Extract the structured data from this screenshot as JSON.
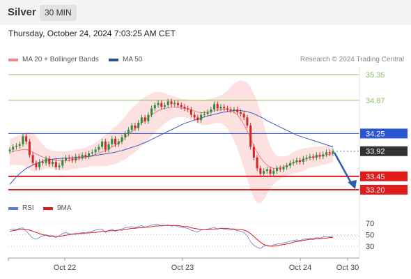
{
  "header": {
    "title": "Silver",
    "timeframe": "30 MIN"
  },
  "timestamp": "Thursday, October 24, 2024 7:03:25 AM CET",
  "legend": {
    "ma": "MA 20 + Bollinger Bands",
    "ma50": "MA 50",
    "credit": "Research © 2024 Trading Central",
    "rsi": "RSI",
    "rsi_ma": "9MA"
  },
  "colors": {
    "candle_up": "#2e8b3e",
    "candle_down": "#d42525",
    "bb_fill": "#fde0e0",
    "ma20": "#f07a7a",
    "ma50": "#3a5ec0",
    "resistance": "#90c060",
    "support": "#e01b1b",
    "pivot": "#2a55d0",
    "last": "#333333"
  },
  "chart_data": [
    {
      "type": "candlestick",
      "x_tick_labels": [
        "Oct 22",
        "Oct 23",
        "Oct 24",
        "Oct 30"
      ],
      "ylim": [
        33.1,
        35.45
      ],
      "levels": [
        {
          "value": 35.35,
          "label": "35.35",
          "kind": "resistance"
        },
        {
          "value": 34.87,
          "label": "34.87",
          "kind": "resistance"
        },
        {
          "value": 34.25,
          "label": "34.25",
          "kind": "pivot"
        },
        {
          "value": 33.92,
          "label": "33.92",
          "kind": "last"
        },
        {
          "value": 33.45,
          "label": "33.45",
          "kind": "support"
        },
        {
          "value": 33.2,
          "label": "33.20",
          "kind": "support"
        }
      ],
      "arrow": {
        "from": 33.92,
        "to": 33.2
      },
      "close": [
        33.95,
        34.0,
        34.02,
        34.05,
        34.2,
        34.1,
        33.85,
        33.7,
        33.62,
        33.72,
        33.7,
        33.78,
        33.68,
        33.72,
        33.62,
        33.65,
        33.75,
        33.8,
        33.78,
        33.75,
        33.82,
        33.8,
        33.85,
        33.82,
        33.88,
        33.9,
        33.95,
        34.0,
        34.1,
        33.95,
        34.05,
        34.15,
        34.05,
        34.1,
        34.18,
        34.25,
        34.32,
        34.4,
        34.35,
        34.45,
        34.55,
        34.48,
        34.6,
        34.72,
        34.78,
        34.82,
        34.75,
        34.78,
        34.85,
        34.8,
        34.82,
        34.78,
        34.75,
        34.72,
        34.7,
        34.6,
        34.55,
        34.5,
        34.6,
        34.62,
        34.65,
        34.7,
        34.8,
        34.72,
        34.75,
        34.72,
        34.7,
        34.68,
        34.7,
        34.65,
        34.62,
        34.55,
        34.4,
        34.0,
        33.8,
        33.6,
        33.5,
        33.55,
        33.58,
        33.5,
        33.55,
        33.6,
        33.58,
        33.62,
        33.65,
        33.7,
        33.72,
        33.75,
        33.72,
        33.78,
        33.8,
        33.82,
        33.8,
        33.85,
        33.82,
        33.86,
        33.9,
        33.88,
        33.92
      ],
      "ma20": [
        33.9,
        33.92,
        33.93,
        33.94,
        33.95,
        33.95,
        33.93,
        33.9,
        33.87,
        33.84,
        33.81,
        33.79,
        33.77,
        33.76,
        33.75,
        33.74,
        33.74,
        33.74,
        33.75,
        33.76,
        33.77,
        33.78,
        33.79,
        33.8,
        33.82,
        33.84,
        33.86,
        33.88,
        33.91,
        33.93,
        33.96,
        34.0,
        34.03,
        34.07,
        34.12,
        34.17,
        34.23,
        34.29,
        34.34,
        34.4,
        34.46,
        34.5,
        34.55,
        34.6,
        34.64,
        34.68,
        34.7,
        34.72,
        34.73,
        34.74,
        34.74,
        34.74,
        34.73,
        34.72,
        34.71,
        34.69,
        34.67,
        34.65,
        34.64,
        34.64,
        34.65,
        34.66,
        34.68,
        34.69,
        34.7,
        34.7,
        34.7,
        34.68,
        34.65,
        34.6,
        34.52,
        34.42,
        34.3,
        34.16,
        34.02,
        33.9,
        33.8,
        33.72,
        33.66,
        33.62,
        33.6,
        33.6,
        33.61,
        33.63,
        33.65,
        33.67,
        33.7,
        33.72,
        33.74,
        33.76,
        33.78,
        33.8,
        33.81,
        33.82,
        33.83,
        33.84,
        33.85,
        33.86,
        33.87
      ],
      "bb_upper": [
        34.15,
        34.17,
        34.2,
        34.22,
        34.25,
        34.28,
        34.28,
        34.25,
        34.2,
        34.12,
        34.05,
        33.98,
        33.95,
        33.93,
        33.92,
        33.92,
        33.92,
        33.92,
        33.93,
        33.94,
        33.95,
        33.96,
        33.97,
        33.99,
        34.01,
        34.04,
        34.08,
        34.12,
        34.18,
        34.22,
        34.27,
        34.33,
        34.38,
        34.43,
        34.5,
        34.57,
        34.65,
        34.72,
        34.78,
        34.84,
        34.9,
        34.94,
        34.97,
        35.0,
        35.02,
        35.03,
        35.02,
        35.0,
        34.98,
        34.96,
        34.94,
        34.92,
        34.9,
        34.89,
        34.88,
        34.87,
        34.86,
        34.86,
        34.87,
        34.88,
        34.89,
        34.9,
        34.92,
        34.94,
        34.96,
        35.0,
        35.05,
        35.12,
        35.18,
        35.22,
        35.24,
        35.23,
        35.2,
        35.12,
        35.0,
        34.85,
        34.65,
        34.42,
        34.2,
        34.02,
        33.9,
        33.84,
        33.82,
        33.82,
        33.83,
        33.86,
        33.9,
        33.93,
        33.95,
        33.97,
        33.98,
        33.99,
        34.0,
        34.0,
        34.01,
        34.01,
        34.02,
        34.02,
        34.02
      ],
      "bb_lower": [
        33.65,
        33.67,
        33.66,
        33.66,
        33.65,
        33.62,
        33.58,
        33.55,
        33.54,
        33.56,
        33.57,
        33.6,
        33.59,
        33.59,
        33.58,
        33.56,
        33.56,
        33.56,
        33.57,
        33.58,
        33.59,
        33.6,
        33.61,
        33.61,
        33.63,
        33.64,
        33.64,
        33.64,
        33.64,
        33.64,
        33.65,
        33.67,
        33.68,
        33.71,
        33.74,
        33.77,
        33.81,
        33.86,
        33.9,
        33.96,
        34.02,
        34.06,
        34.13,
        34.2,
        34.26,
        34.33,
        34.38,
        34.44,
        34.48,
        34.52,
        34.54,
        34.56,
        34.56,
        34.55,
        34.54,
        34.51,
        34.48,
        34.44,
        34.41,
        34.4,
        34.41,
        34.42,
        34.44,
        34.44,
        34.44,
        34.4,
        34.35,
        34.24,
        34.12,
        33.98,
        33.8,
        33.61,
        33.4,
        33.2,
        33.04,
        32.95,
        32.95,
        33.02,
        33.12,
        33.22,
        33.3,
        33.36,
        33.4,
        33.44,
        33.47,
        33.48,
        33.5,
        33.51,
        33.53,
        33.55,
        33.58,
        33.61,
        33.62,
        33.64,
        33.65,
        33.67,
        33.68,
        33.7,
        33.72
      ],
      "ma50": [
        33.3,
        33.37,
        33.44,
        33.5,
        33.55,
        33.6,
        33.63,
        33.66,
        33.69,
        33.71,
        33.73,
        33.75,
        33.76,
        33.77,
        33.78,
        33.78,
        33.79,
        33.79,
        33.79,
        33.8,
        33.8,
        33.81,
        33.81,
        33.82,
        33.82,
        33.83,
        33.84,
        33.85,
        33.86,
        33.87,
        33.88,
        33.89,
        33.9,
        33.92,
        33.93,
        33.95,
        33.97,
        33.99,
        34.01,
        34.03,
        34.06,
        34.08,
        34.11,
        34.14,
        34.17,
        34.2,
        34.23,
        34.26,
        34.29,
        34.32,
        34.35,
        34.38,
        34.41,
        34.44,
        34.46,
        34.48,
        34.5,
        34.52,
        34.54,
        34.56,
        34.58,
        34.59,
        34.61,
        34.62,
        34.64,
        34.65,
        34.66,
        34.67,
        34.68,
        34.68,
        34.68,
        34.67,
        34.66,
        34.64,
        34.62,
        34.59,
        34.56,
        34.53,
        34.49,
        34.46,
        34.43,
        34.4,
        34.37,
        34.34,
        34.31,
        34.28,
        34.25,
        34.22,
        34.2,
        34.18,
        34.16,
        34.14,
        34.12,
        34.1,
        34.08,
        34.06,
        34.04,
        34.02,
        34.0
      ]
    },
    {
      "type": "line",
      "title": "RSI",
      "ylim": [
        20,
        80
      ],
      "y_ticks": [
        70,
        50,
        30
      ],
      "series": [
        {
          "name": "RSI",
          "values": [
            58,
            60,
            59,
            61,
            62,
            56,
            50,
            44,
            42,
            45,
            48,
            50,
            46,
            47,
            45,
            48,
            52,
            54,
            52,
            51,
            53,
            52,
            54,
            53,
            55,
            56,
            58,
            59,
            60,
            54,
            57,
            60,
            56,
            58,
            60,
            62,
            63,
            64,
            62,
            64,
            66,
            63,
            65,
            67,
            68,
            68,
            65,
            66,
            67,
            65,
            66,
            64,
            63,
            62,
            61,
            58,
            56,
            55,
            58,
            59,
            60,
            61,
            63,
            60,
            61,
            60,
            59,
            58,
            59,
            57,
            56,
            54,
            48,
            38,
            32,
            28,
            26,
            30,
            32,
            30,
            32,
            34,
            34,
            36,
            37,
            39,
            40,
            41,
            40,
            42,
            43,
            44,
            43,
            45,
            44,
            46,
            47,
            46,
            48
          ]
        },
        {
          "name": "9MA",
          "values": [
            56,
            57,
            58,
            59,
            59,
            59,
            58,
            56,
            54,
            52,
            50,
            49,
            48,
            48,
            47,
            47,
            48,
            49,
            50,
            51,
            51,
            52,
            52,
            53,
            53,
            54,
            54,
            55,
            56,
            56,
            57,
            57,
            57,
            58,
            58,
            59,
            60,
            61,
            61,
            62,
            62,
            63,
            63,
            64,
            65,
            65,
            66,
            66,
            66,
            66,
            66,
            66,
            65,
            64,
            64,
            62,
            61,
            60,
            59,
            59,
            59,
            59,
            60,
            60,
            61,
            61,
            61,
            60,
            60,
            59,
            59,
            58,
            56,
            52,
            47,
            42,
            37,
            33,
            31,
            30,
            30,
            31,
            32,
            33,
            34,
            35,
            37,
            38,
            39,
            40,
            41,
            42,
            42,
            43,
            43,
            44,
            44,
            45,
            45
          ]
        }
      ]
    }
  ]
}
